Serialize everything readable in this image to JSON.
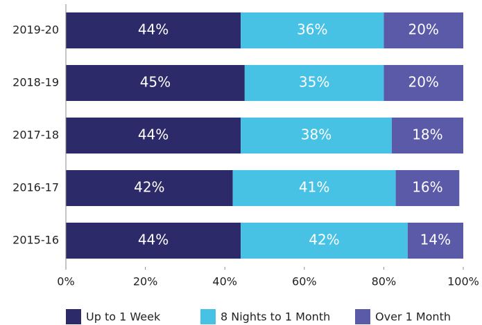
{
  "chart_data": {
    "type": "stacked-barh",
    "categories": [
      "2019-20",
      "2018-19",
      "2017-18",
      "2016-17",
      "2015-16"
    ],
    "series": [
      {
        "name": "Up to 1 Week",
        "color": "#2d2a6a",
        "values": [
          44,
          45,
          44,
          42,
          44
        ],
        "value_labels": [
          "44%",
          "45%",
          "44%",
          "42%",
          "44%"
        ]
      },
      {
        "name": "8 Nights to 1 Month",
        "color": "#47c2e5",
        "values": [
          36,
          35,
          38,
          41,
          42
        ],
        "value_labels": [
          "36%",
          "35%",
          "38%",
          "41%",
          "42%"
        ]
      },
      {
        "name": "Over 1 Month",
        "color": "#5b5aa9",
        "values": [
          20,
          20,
          18,
          16,
          14
        ],
        "value_labels": [
          "20%",
          "20%",
          "18%",
          "16%",
          "14%"
        ]
      }
    ],
    "xlim": [
      0,
      100
    ],
    "xticks": [
      {
        "value": 0,
        "label": "0%"
      },
      {
        "value": 20,
        "label": "20%"
      },
      {
        "value": 40,
        "label": "40%"
      },
      {
        "value": 60,
        "label": "60%"
      },
      {
        "value": 80,
        "label": "80%"
      },
      {
        "value": 100,
        "label": "100%"
      }
    ],
    "legend": "bottom"
  }
}
